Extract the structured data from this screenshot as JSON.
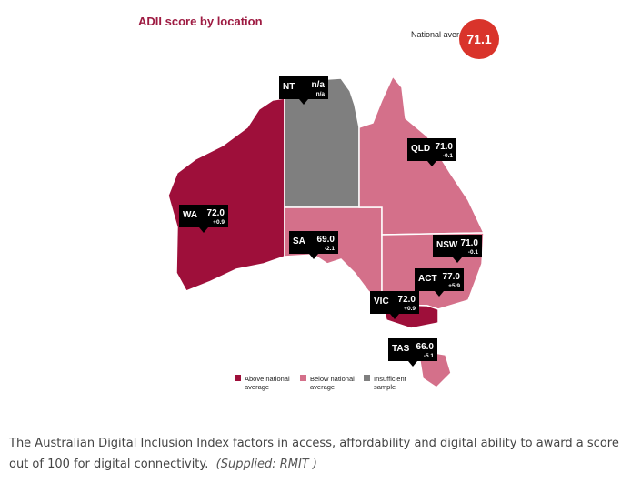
{
  "map": {
    "title": "ADII score by location",
    "national_average": {
      "label": "National average",
      "value": "71.1"
    },
    "states": [
      {
        "name": "NT",
        "score": "n/a",
        "diff": "n/a"
      },
      {
        "name": "QLD",
        "score": "71.0",
        "diff": "-0.1"
      },
      {
        "name": "WA",
        "score": "72.0",
        "diff": "+0.9"
      },
      {
        "name": "SA",
        "score": "69.0",
        "diff": "-2.1"
      },
      {
        "name": "NSW",
        "score": "71.0",
        "diff": "-0.1"
      },
      {
        "name": "ACT",
        "score": "77.0",
        "diff": "+5.9"
      },
      {
        "name": "VIC",
        "score": "72.0",
        "diff": "+0.9"
      },
      {
        "name": "TAS",
        "score": "66.0",
        "diff": "-5.1"
      }
    ],
    "legend": [
      "Above national average",
      "Below national average",
      "Insufficient sample"
    ]
  },
  "caption": {
    "text": "The Australian Digital Inclusion Index factors in access, affordability and digital ability to award a score out of 100 for digital connectivity.",
    "credit": "(Supplied: RMIT )"
  }
}
